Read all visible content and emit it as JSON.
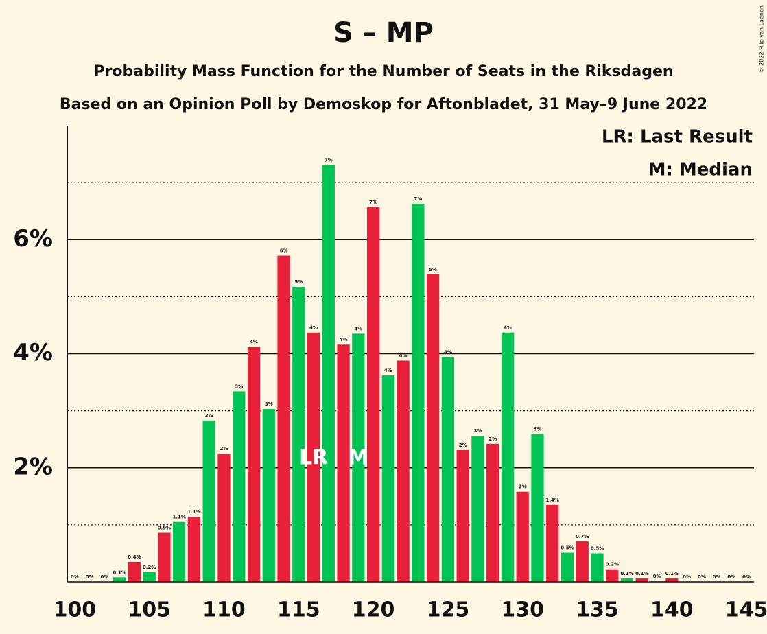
{
  "chart_data": {
    "type": "bar",
    "title": "S – MP",
    "subtitle": "Probability Mass Function for the Number of Seats in the Riksdagen",
    "subtitle2": "Based on an Opinion Poll by Demoskop for Aftonbladet, 31 May–9 June 2022",
    "copyright": "© 2022 Filip van Laenen",
    "legend": [
      "LR: Last Result",
      "M: Median"
    ],
    "legend_position": "top-right",
    "annotations": [
      {
        "text": "LR",
        "x": 116
      },
      {
        "text": "M",
        "x": 119
      }
    ],
    "x": [
      100,
      101,
      102,
      103,
      104,
      105,
      106,
      107,
      108,
      109,
      110,
      111,
      112,
      113,
      114,
      115,
      116,
      117,
      118,
      119,
      120,
      121,
      122,
      123,
      124,
      125,
      126,
      127,
      128,
      129,
      130,
      131,
      132,
      133,
      134,
      135,
      136,
      137,
      138,
      139,
      140,
      141,
      142,
      143,
      144,
      145
    ],
    "values": [
      0,
      0,
      0,
      0.08,
      0.35,
      0.17,
      0.86,
      1.05,
      1.14,
      2.83,
      2.25,
      3.34,
      4.12,
      3.03,
      5.72,
      5.17,
      4.37,
      7.31,
      4.16,
      4.35,
      6.57,
      3.62,
      3.88,
      6.63,
      5.39,
      3.94,
      2.31,
      2.56,
      2.42,
      4.37,
      1.58,
      2.59,
      1.35,
      0.51,
      0.71,
      0.5,
      0.22,
      0.06,
      0.06,
      0.01,
      0.06,
      0,
      0,
      0,
      0,
      0
    ],
    "value_labels": [
      "0%",
      "0%",
      "0%",
      "0.1%",
      "0.4%",
      "0.2%",
      "0.9%",
      "1.1%",
      "1.1%",
      "3%",
      "2%",
      "3%",
      "4%",
      "3%",
      "6%",
      "5%",
      "4%",
      "7%",
      "4%",
      "4%",
      "7%",
      "4%",
      "4%",
      "7%",
      "5%",
      "4%",
      "2%",
      "3%",
      "2%",
      "4%",
      "2%",
      "3%",
      "1.4%",
      "0.5%",
      "0.7%",
      "0.5%",
      "0.2%",
      "0.1%",
      "0.1%",
      "0%",
      "0.1%",
      "0%",
      "0%",
      "0%",
      "0%",
      "0%"
    ],
    "colors": [
      "#e8203a",
      "#00c454",
      "#e8203a",
      "#00c454",
      "#e8203a",
      "#00c454",
      "#e8203a",
      "#00c454",
      "#e8203a",
      "#00c454",
      "#e8203a",
      "#00c454",
      "#e8203a",
      "#00c454",
      "#e8203a",
      "#00c454",
      "#e8203a",
      "#00c454",
      "#e8203a",
      "#00c454",
      "#e8203a",
      "#00c454",
      "#e8203a",
      "#00c454",
      "#e8203a",
      "#00c454",
      "#e8203a",
      "#00c454",
      "#e8203a",
      "#00c454",
      "#e8203a",
      "#00c454",
      "#e8203a",
      "#00c454",
      "#e8203a",
      "#00c454",
      "#e8203a",
      "#00c454",
      "#e8203a",
      "#00c454",
      "#e8203a",
      "#00c454",
      "#e8203a",
      "#00c454",
      "#e8203a",
      "#00c454"
    ],
    "xlim": [
      99.5,
      145.5
    ],
    "xticks": [
      100,
      105,
      110,
      115,
      120,
      125,
      130,
      135,
      140,
      145
    ],
    "ylim": [
      0,
      8
    ],
    "yticks": [
      {
        "value": 2,
        "label": "2%"
      },
      {
        "value": 4,
        "label": "4%"
      },
      {
        "value": 6,
        "label": "6%"
      }
    ],
    "minor_gridlines": [
      1,
      3,
      5,
      7
    ],
    "grid": true
  }
}
